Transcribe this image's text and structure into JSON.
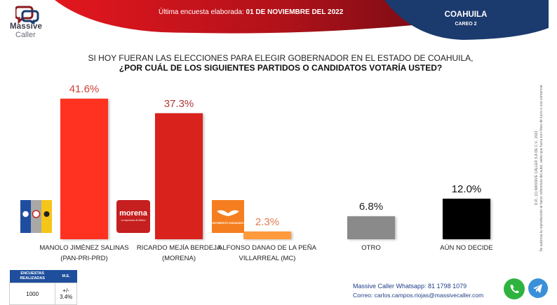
{
  "brand": {
    "line1": "Massive",
    "line2": "Caller"
  },
  "header": {
    "date_prefix": "Última encuesta elaborada: ",
    "date_value": "01 DE NOVIEMBRE DEL 2022",
    "state": "COAHUILA",
    "careo": "CAREO 2"
  },
  "question": {
    "line1": "SI HOY FUERAN LAS ELECCIONES PARA ELEGIR GOBERNADOR EN EL ESTADO DE COAHUILA,",
    "line2": "¿POR CUÁL DE LOS SIGUIENTES PARTIDOS O CANDIDATOS  VOTARÍA USTED?"
  },
  "chart_data": {
    "type": "bar",
    "title": "¿POR CUÁL DE LOS SIGUIENTES PARTIDOS O CANDIDATOS VOTARÍA USTED?",
    "xlabel": "",
    "ylabel": "",
    "ylim": [
      0,
      45
    ],
    "grid": false,
    "categories": [
      "MANOLO JIMÉNEZ SALINAS (PAN-PRI-PRD)",
      "RICARDO MEJÍA BERDEJA (MORENA)",
      "ALFONSO DANAO DE LA PEÑA VILLARREAL (MC)",
      "OTRO",
      "AÚN NO DECIDE"
    ],
    "values": [
      41.6,
      37.3,
      2.3,
      6.8,
      12.0
    ],
    "value_labels": [
      "41.6%",
      "37.3%",
      "2.3%",
      "6.8%",
      "12.0%"
    ],
    "bar_colors": [
      "#ff3322",
      "#d9221b",
      "#ff9a3c",
      "#8a8a8a",
      "#000000"
    ],
    "label_colors": [
      "#d04038",
      "#b03838",
      "#e07a50",
      "#222222",
      "#111111"
    ],
    "label_lines": [
      [
        "MANOLO JIMÉNEZ SALINAS",
        "(PAN-PRI-PRD)"
      ],
      [
        "RICARDO MEJÍA BERDEJA",
        "(MORENA)"
      ],
      [
        "ALFONSO DANAO DE LA PEÑA",
        "VILLARREAL (MC)"
      ],
      [
        "OTRO"
      ],
      [
        "AÚN NO DECIDE"
      ]
    ],
    "party_logos": [
      {
        "name": "PAN-PRI-PRD",
        "parts": [
          "PAN",
          "PRI",
          "PRD"
        ]
      },
      {
        "name": "morena",
        "text": "morena",
        "subtext": "La esperanza de México"
      },
      {
        "name": "MOVIMIENTO CIUDADANO",
        "text": "MOVIMIENTO CIUDADANO"
      },
      null,
      null
    ]
  },
  "stats": {
    "headers": [
      "ENCUESTAS REALIZADAS",
      "M.E."
    ],
    "values": [
      "1000",
      "+/- 3.4%"
    ]
  },
  "contact": {
    "whatsapp": "Massive Caller Whatsapp: 81 1798 1079",
    "email": "Correo: carlos.campos.riojas@massivecaller.com"
  },
  "legal": {
    "line1": "D.R., (C) MASSIVE CALLER S.A DE C.V., 2022",
    "line2": "Se autoriza la reproducción al hacer referencia del autor, salvo que fuera con fines de lucro o uso comercial."
  },
  "colors": {
    "brand_red": "#d7141a",
    "brand_navy": "#1b3a6e"
  }
}
